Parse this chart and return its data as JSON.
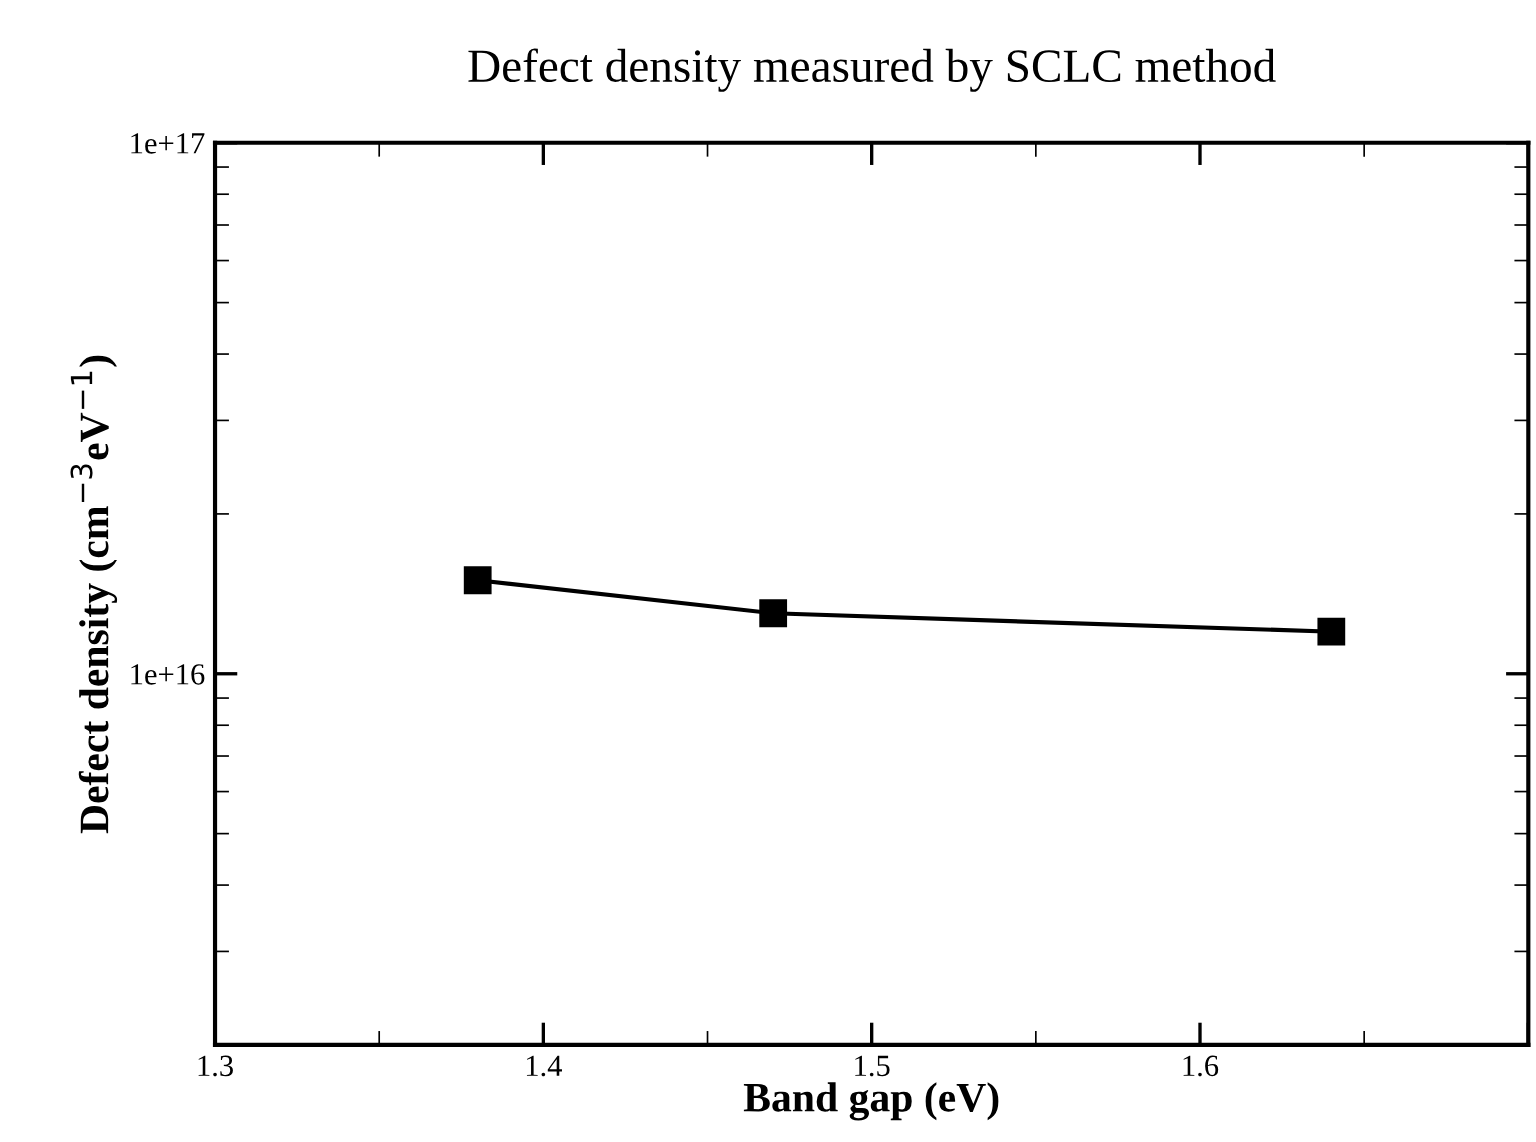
{
  "chart_data": {
    "type": "line",
    "title": "Defect density measured by SCLC method",
    "xlabel": "Band gap (eV)",
    "ylabel": "Defect density (cm$^{−3}$eV$^{−1}$)",
    "x": [
      1.38,
      1.47,
      1.64
    ],
    "series": [
      {
        "color": "#000000",
        "values": [
          1.5e+16,
          1.3e+16,
          1.2e+16
        ]
      }
    ],
    "log": "y",
    "xlim": [
      1.3,
      1.7
    ],
    "ylim": [
      2000000000000000.0,
      1e+17
    ],
    "xticks": [
      1.3,
      1.4,
      1.5,
      1.6,
      {
        "value": 1.7,
        "label": null
      }
    ],
    "yticks": [
      {
        "value": 1e+16,
        "label": "1e+16"
      },
      {
        "value": 1e+17,
        "label": "1e+17"
      }
    ],
    "marker": "square",
    "line_style": "solid",
    "grid": false
  }
}
